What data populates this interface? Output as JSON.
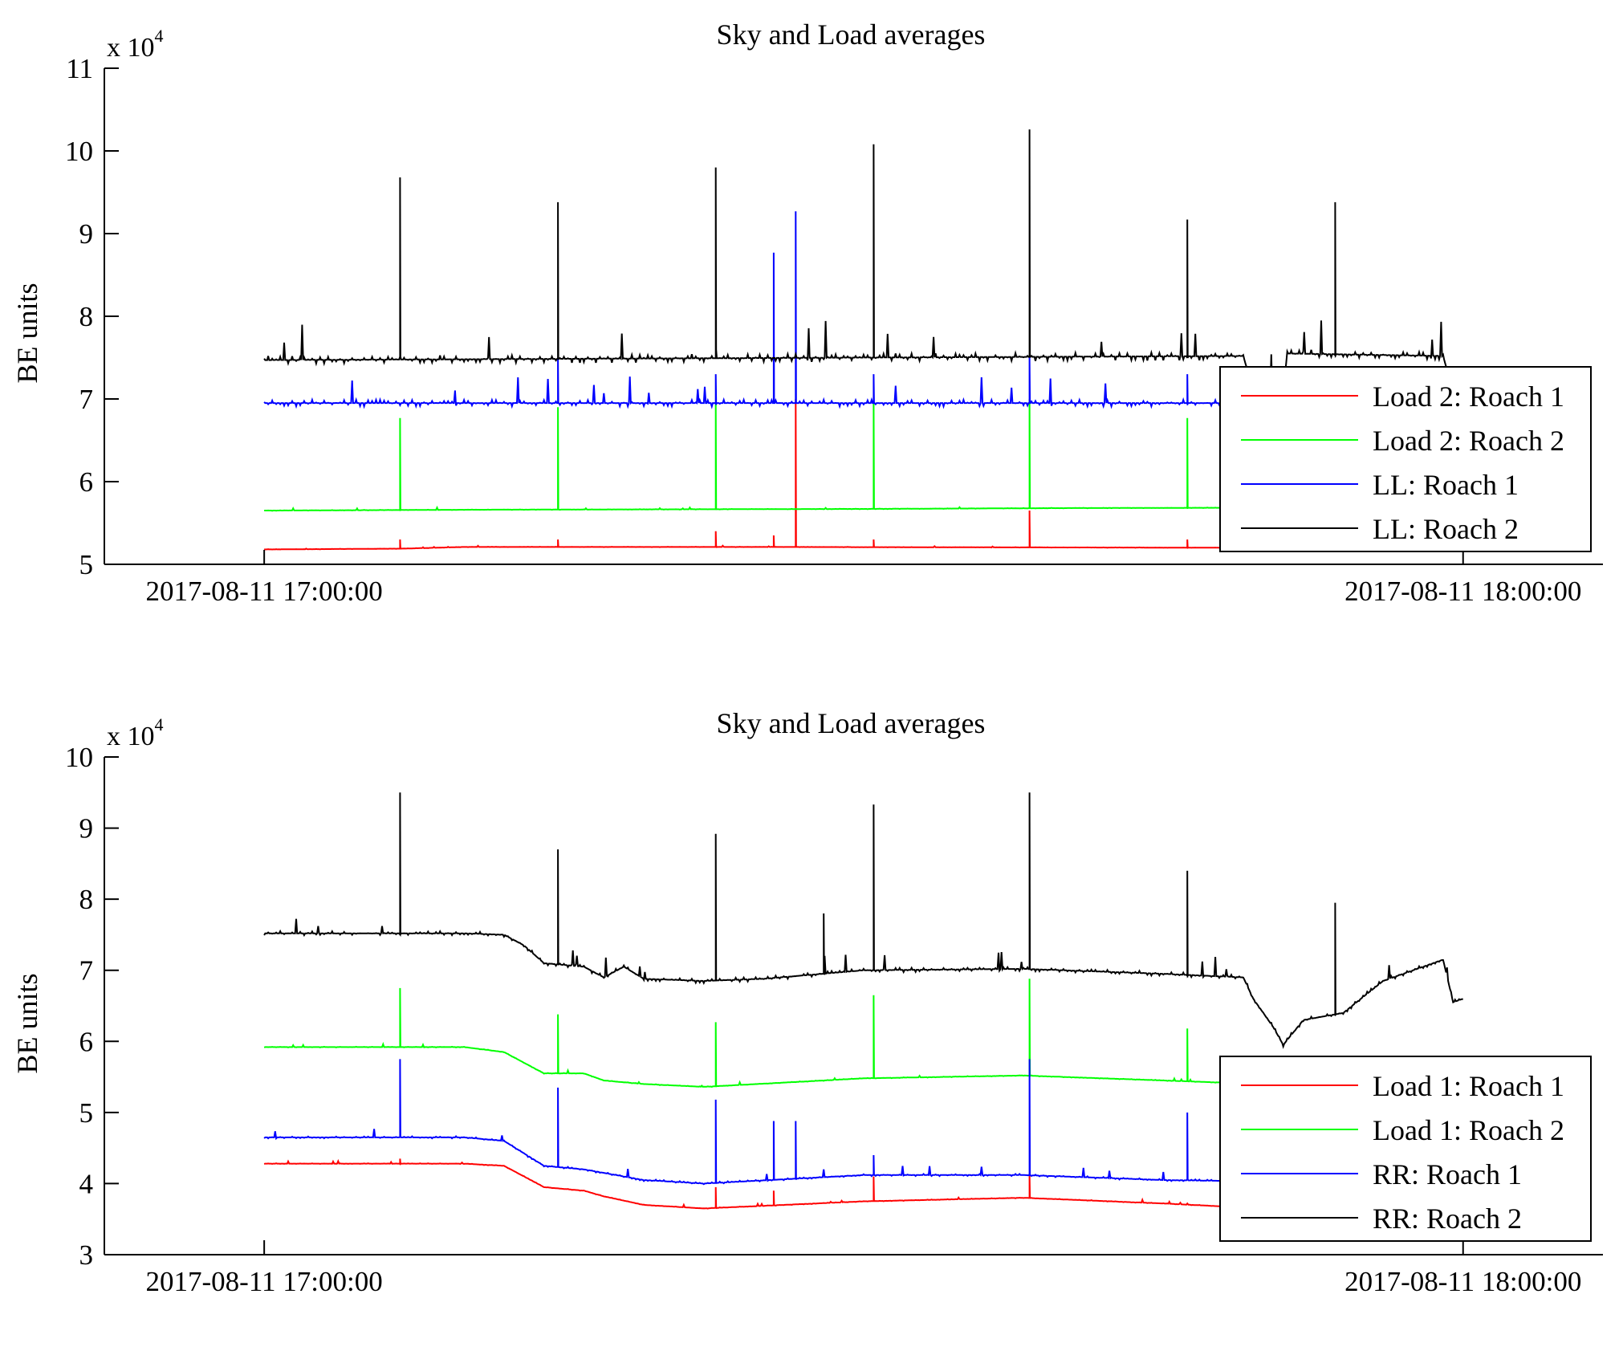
{
  "chart_data": [
    {
      "type": "line",
      "title": "Sky and Load averages",
      "ylabel": "BE units",
      "xlabel": "",
      "y_multiplier": "x 10^4",
      "y_multiplier_base": "x 10",
      "y_multiplier_exp": "4",
      "ylim": [
        5,
        11
      ],
      "yticks": [
        "5",
        "6",
        "7",
        "8",
        "9",
        "10",
        "11"
      ],
      "xlim": [
        "2017-08-11 16:52:00",
        "2017-08-11 18:07:00"
      ],
      "xticks": [
        "2017-08-11 17:00:00",
        "2017-08-11 18:00:00"
      ],
      "x_unit": "minutes after 17:00 (2017-08-11)",
      "legend_position": "lower-right",
      "grid": false,
      "series": [
        {
          "name": "Load 2: Roach 1",
          "color": "#ff0000",
          "baseline": [
            [
              0,
              5.18
            ],
            [
              7,
              5.19
            ],
            [
              10,
              5.21
            ],
            [
              25,
              5.21
            ],
            [
              50,
              5.2
            ],
            [
              60,
              5.2
            ]
          ],
          "spikes": [
            [
              6.8,
              5.3
            ],
            [
              14.7,
              5.3
            ],
            [
              22.6,
              5.4
            ],
            [
              25.5,
              5.35
            ],
            [
              26.6,
              7.0
            ],
            [
              30.5,
              5.3
            ],
            [
              38.3,
              5.65
            ],
            [
              46.2,
              5.3
            ]
          ],
          "noise": 0.004
        },
        {
          "name": "Load 2: Roach 2",
          "color": "#00ff00",
          "baseline": [
            [
              0,
              5.65
            ],
            [
              10,
              5.66
            ],
            [
              30,
              5.67
            ],
            [
              40,
              5.68
            ],
            [
              60,
              5.69
            ]
          ],
          "spikes": [
            [
              6.8,
              6.77
            ],
            [
              14.7,
              6.9
            ],
            [
              22.6,
              6.95
            ],
            [
              30.5,
              6.95
            ],
            [
              38.3,
              7.0
            ],
            [
              46.2,
              6.77
            ]
          ],
          "noise": 0.006
        },
        {
          "name": "LL: Roach 1",
          "color": "#0000ff",
          "baseline": [
            [
              0,
              6.95
            ],
            [
              60,
              6.95
            ]
          ],
          "spikes": [
            [
              14.7,
              7.5
            ],
            [
              22.6,
              7.3
            ],
            [
              25.5,
              8.77
            ],
            [
              26.6,
              9.27
            ],
            [
              30.5,
              7.3
            ],
            [
              38.3,
              7.5
            ],
            [
              46.2,
              7.3
            ]
          ],
          "noise": 0.08
        },
        {
          "name": "LL: Roach 2",
          "color": "#000000",
          "baseline": [
            [
              0,
              7.47
            ],
            [
              10,
              7.48
            ],
            [
              49,
              7.52
            ],
            [
              49.5,
              7.1
            ],
            [
              51,
              7.1
            ],
            [
              51.2,
              7.55
            ],
            [
              59,
              7.52
            ],
            [
              59.2,
              7.35
            ]
          ],
          "spikes": [
            [
              6.8,
              9.68
            ],
            [
              14.7,
              9.38
            ],
            [
              22.6,
              9.8
            ],
            [
              30.5,
              10.08
            ],
            [
              38.3,
              10.26
            ],
            [
              46.2,
              9.17
            ],
            [
              53.6,
              9.38
            ]
          ],
          "noise": 0.1
        }
      ]
    },
    {
      "type": "line",
      "title": "Sky and Load averages",
      "ylabel": "BE units",
      "xlabel": "",
      "y_multiplier": "x 10^4",
      "y_multiplier_base": "x 10",
      "y_multiplier_exp": "4",
      "ylim": [
        3,
        10
      ],
      "yticks": [
        "3",
        "4",
        "5",
        "6",
        "7",
        "8",
        "9",
        "10"
      ],
      "xlim": [
        "2017-08-11 16:52:00",
        "2017-08-11 18:07:00"
      ],
      "xticks": [
        "2017-08-11 17:00:00",
        "2017-08-11 18:00:00"
      ],
      "x_unit": "minutes after 17:00 (2017-08-11)",
      "legend_position": "lower-right",
      "grid": false,
      "series": [
        {
          "name": "Load 1: Roach 1",
          "color": "#ff0000",
          "baseline": [
            [
              0,
              4.28
            ],
            [
              10,
              4.28
            ],
            [
              12,
              4.25
            ],
            [
              14,
              3.95
            ],
            [
              16,
              3.9
            ],
            [
              17,
              3.82
            ],
            [
              19,
              3.7
            ],
            [
              22,
              3.65
            ],
            [
              30,
              3.75
            ],
            [
              38,
              3.8
            ],
            [
              45,
              3.72
            ],
            [
              50,
              3.65
            ]
          ],
          "spikes": [
            [
              6.8,
              4.35
            ],
            [
              22.6,
              3.95
            ],
            [
              25.5,
              3.9
            ],
            [
              30.5,
              4.1
            ],
            [
              38.3,
              4.15
            ]
          ],
          "noise": 0.01
        },
        {
          "name": "Load 1: Roach 2",
          "color": "#00ff00",
          "baseline": [
            [
              0,
              5.92
            ],
            [
              10,
              5.92
            ],
            [
              12,
              5.85
            ],
            [
              14,
              5.55
            ],
            [
              16,
              5.55
            ],
            [
              17,
              5.45
            ],
            [
              19,
              5.4
            ],
            [
              22,
              5.36
            ],
            [
              30,
              5.48
            ],
            [
              38,
              5.52
            ],
            [
              45,
              5.45
            ],
            [
              50,
              5.4
            ]
          ],
          "spikes": [
            [
              6.8,
              6.75
            ],
            [
              14.7,
              6.38
            ],
            [
              22.6,
              6.27
            ],
            [
              30.5,
              6.65
            ],
            [
              38.3,
              6.88
            ],
            [
              46.2,
              6.18
            ]
          ],
          "noise": 0.01
        },
        {
          "name": "RR: Roach 1",
          "color": "#0000ff",
          "baseline": [
            [
              0,
              4.65
            ],
            [
              10,
              4.65
            ],
            [
              12,
              4.6
            ],
            [
              14,
              4.25
            ],
            [
              16,
              4.2
            ],
            [
              17,
              4.15
            ],
            [
              19,
              4.05
            ],
            [
              22,
              4.0
            ],
            [
              30,
              4.12
            ],
            [
              38,
              4.12
            ],
            [
              45,
              4.05
            ],
            [
              50,
              4.03
            ]
          ],
          "spikes": [
            [
              6.8,
              5.75
            ],
            [
              14.7,
              5.35
            ],
            [
              22.6,
              5.18
            ],
            [
              25.5,
              4.88
            ],
            [
              26.6,
              4.88
            ],
            [
              30.5,
              4.4
            ],
            [
              38.3,
              5.75
            ],
            [
              46.2,
              5.0
            ]
          ],
          "noise": 0.03
        },
        {
          "name": "RR: Roach 2",
          "color": "#000000",
          "baseline": [
            [
              0,
              7.52
            ],
            [
              10,
              7.52
            ],
            [
              12,
              7.5
            ],
            [
              13,
              7.35
            ],
            [
              14,
              7.1
            ],
            [
              16,
              7.05
            ],
            [
              17,
              6.9
            ],
            [
              18,
              7.05
            ],
            [
              19,
              6.88
            ],
            [
              22,
              6.85
            ],
            [
              25,
              6.88
            ],
            [
              30,
              7.0
            ],
            [
              38,
              7.02
            ],
            [
              45,
              6.95
            ],
            [
              49,
              6.9
            ],
            [
              49.5,
              6.6
            ],
            [
              50.5,
              6.2
            ],
            [
              51,
              5.95
            ],
            [
              52,
              6.3
            ],
            [
              54,
              6.4
            ],
            [
              56,
              6.85
            ],
            [
              58,
              7.05
            ],
            [
              59,
              7.15
            ],
            [
              59.5,
              6.55
            ],
            [
              60,
              6.6
            ]
          ],
          "spikes": [
            [
              6.8,
              9.5
            ],
            [
              14.7,
              8.7
            ],
            [
              22.6,
              8.92
            ],
            [
              28,
              7.8
            ],
            [
              30.5,
              9.33
            ],
            [
              38.3,
              9.5
            ],
            [
              46.2,
              8.4
            ],
            [
              53.6,
              7.95
            ]
          ],
          "noise": 0.06
        }
      ]
    }
  ]
}
